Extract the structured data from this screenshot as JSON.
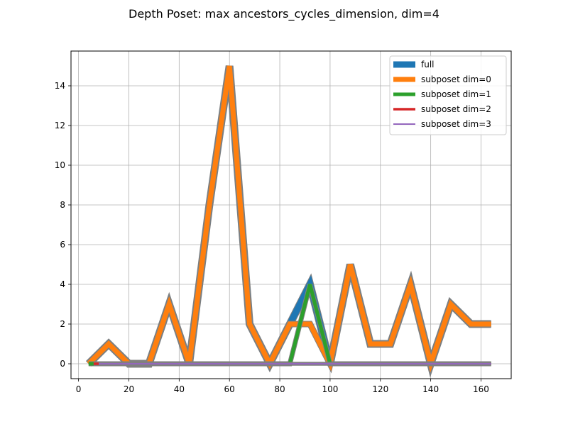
{
  "chart_data": {
    "type": "line",
    "title": "Depth Poset: max ancestors_cycles_dimension, dim=4",
    "xlabel": "",
    "ylabel": "",
    "xlim": [
      -3,
      172
    ],
    "ylim": [
      -0.75,
      15.75
    ],
    "xticks": [
      0,
      20,
      40,
      60,
      80,
      100,
      120,
      140,
      160
    ],
    "yticks": [
      0,
      2,
      4,
      6,
      8,
      10,
      12,
      14
    ],
    "grid": true,
    "legend_position": "top-right",
    "series": [
      {
        "name": "full",
        "color": "#1f77b4",
        "width": 9,
        "x": [
          4,
          12,
          20,
          28,
          36,
          44,
          52,
          60,
          68,
          76,
          84,
          92,
          100,
          108,
          116,
          124,
          132,
          140,
          148,
          156,
          164
        ],
        "y": [
          0,
          1,
          0,
          0,
          3,
          0,
          8,
          15,
          2,
          0,
          2,
          4,
          0,
          5,
          1,
          1,
          4,
          0,
          3,
          2,
          2
        ]
      },
      {
        "name": "subposet dim=0",
        "color": "#ff7f0e",
        "width": 7,
        "x": [
          4,
          12,
          20,
          28,
          36,
          44,
          52,
          60,
          68,
          76,
          84,
          92,
          100,
          108,
          116,
          124,
          132,
          140,
          148,
          156,
          164
        ],
        "y": [
          0,
          1,
          0,
          0,
          3,
          0,
          8,
          15,
          2,
          0,
          2,
          2,
          0,
          5,
          1,
          1,
          4,
          0,
          3,
          2,
          2
        ]
      },
      {
        "name": "subposet dim=1",
        "color": "#2ca02c",
        "width": 5,
        "x": [
          4,
          12,
          20,
          28,
          36,
          44,
          52,
          60,
          68,
          76,
          84,
          92,
          100,
          108,
          116,
          124,
          132,
          140,
          148,
          156,
          164
        ],
        "y": [
          0,
          0,
          0,
          0,
          0,
          0,
          0,
          0,
          0,
          0,
          0,
          4,
          0,
          0,
          0,
          0,
          0,
          0,
          0,
          0,
          0
        ]
      },
      {
        "name": "subposet dim=2",
        "color": "#d62728",
        "width": 3.5,
        "x": [
          6,
          12,
          20,
          28,
          36,
          44,
          52,
          60,
          68,
          76,
          84,
          92,
          100,
          108,
          116,
          124,
          132,
          140,
          148,
          156,
          164
        ],
        "y": [
          0,
          0,
          0,
          0,
          0,
          0,
          0,
          0,
          0,
          0,
          0,
          0,
          0,
          0,
          0,
          0,
          0,
          0,
          0,
          0,
          0
        ]
      },
      {
        "name": "subposet dim=3",
        "color": "#9467bd",
        "width": 2,
        "x": [
          8,
          12,
          20,
          28,
          36,
          44,
          52,
          60,
          68,
          76,
          84,
          92,
          100,
          108,
          116,
          124,
          132,
          140,
          148,
          156,
          164
        ],
        "y": [
          0,
          0,
          0,
          0,
          0,
          0,
          0,
          0,
          0,
          0,
          0,
          0,
          0,
          0,
          0,
          0,
          0,
          0,
          0,
          0,
          0
        ]
      }
    ]
  }
}
